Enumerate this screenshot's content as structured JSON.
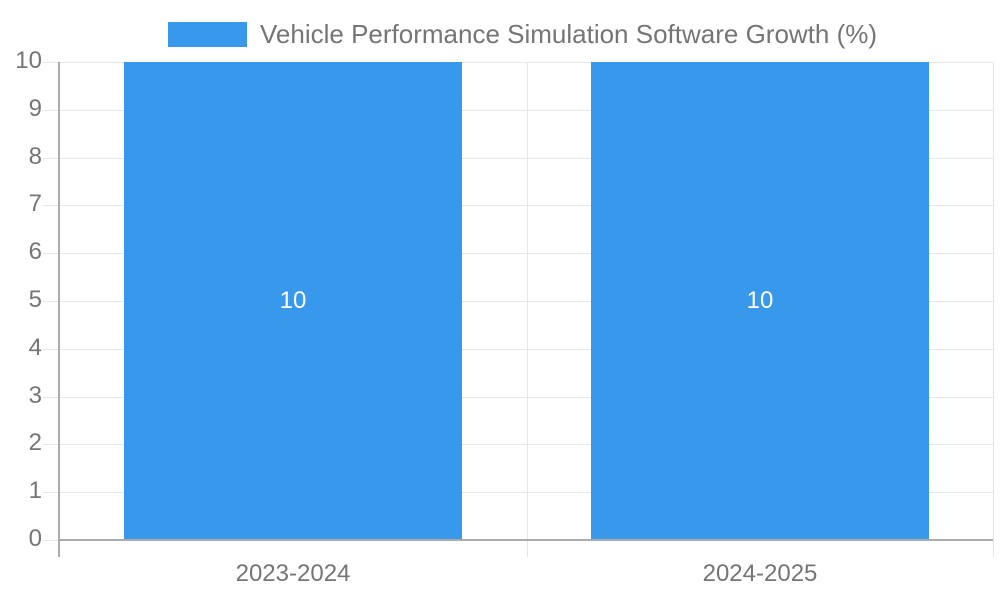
{
  "chart_data": {
    "type": "bar",
    "title": "Vehicle Performance Simulation Software Growth (%)",
    "categories": [
      "2023-2024",
      "2024-2025"
    ],
    "series": [
      {
        "name": "Vehicle Performance Simulation Software Growth (%)",
        "values": [
          10,
          10
        ]
      }
    ],
    "data_labels": [
      "10",
      "10"
    ],
    "ylim": [
      0,
      10
    ],
    "ytick_step": 1,
    "ytick_labels": [
      "0",
      "1",
      "2",
      "3",
      "4",
      "5",
      "6",
      "7",
      "8",
      "9",
      "10"
    ],
    "grid": true,
    "legend_position": "top",
    "colors": {
      "bar": "#3898ec",
      "data_label": "#ffffff",
      "axis_text": "#757575",
      "gridline": "#e6e6e6",
      "axis_line": "#ababab"
    }
  },
  "legend": {
    "label": "Vehicle Performance Simulation Software Growth (%)"
  }
}
